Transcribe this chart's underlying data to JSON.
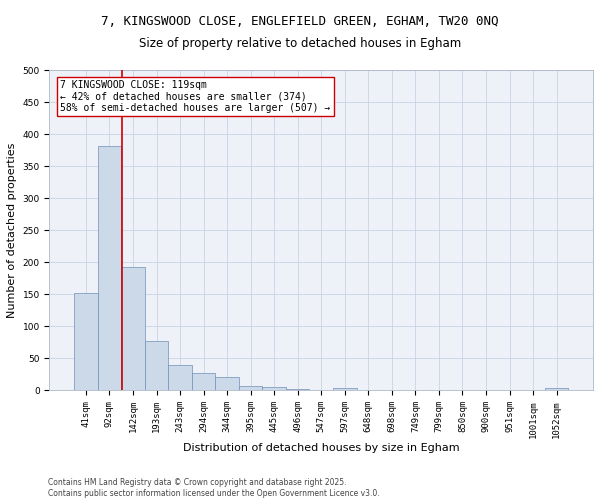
{
  "title_line1": "7, KINGSWOOD CLOSE, ENGLEFIELD GREEN, EGHAM, TW20 0NQ",
  "title_line2": "Size of property relative to detached houses in Egham",
  "categories": [
    "41sqm",
    "92sqm",
    "142sqm",
    "193sqm",
    "243sqm",
    "294sqm",
    "344sqm",
    "395sqm",
    "445sqm",
    "496sqm",
    "547sqm",
    "597sqm",
    "648sqm",
    "698sqm",
    "749sqm",
    "799sqm",
    "850sqm",
    "900sqm",
    "951sqm",
    "1001sqm",
    "1052sqm"
  ],
  "values": [
    152,
    382,
    193,
    77,
    40,
    27,
    20,
    7,
    5,
    2,
    0,
    4,
    0,
    0,
    0,
    0,
    0,
    0,
    0,
    0,
    4
  ],
  "bar_color": "#ccd9e8",
  "bar_edge_color": "#7090b8",
  "bar_width": 1.0,
  "red_line_color": "#cc0000",
  "red_line_x": 1.54,
  "annotation_text_line1": "7 KINGSWOOD CLOSE: 119sqm",
  "annotation_text_line2": "← 42% of detached houses are smaller (374)",
  "annotation_text_line3": "58% of semi-detached houses are larger (507) →",
  "xlabel": "Distribution of detached houses by size in Egham",
  "ylabel": "Number of detached properties",
  "ylim": [
    0,
    500
  ],
  "yticks": [
    0,
    50,
    100,
    150,
    200,
    250,
    300,
    350,
    400,
    450,
    500
  ],
  "grid_color": "#c8d4e4",
  "background_color": "#eef2f8",
  "footer_line1": "Contains HM Land Registry data © Crown copyright and database right 2025.",
  "footer_line2": "Contains public sector information licensed under the Open Government Licence v3.0.",
  "title_fontsize": 9,
  "subtitle_fontsize": 8.5,
  "axis_label_fontsize": 8,
  "tick_fontsize": 6.5,
  "annotation_fontsize": 7,
  "footer_fontsize": 5.5
}
